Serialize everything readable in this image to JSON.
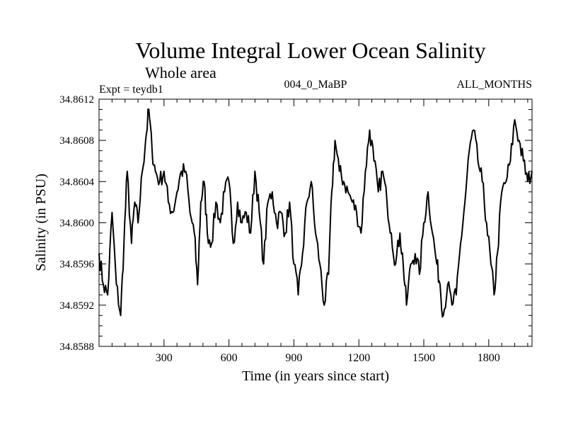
{
  "chart_data": {
    "type": "line",
    "title": "Volume Integral Lower Ocean Salinity",
    "subtitle": "Whole area",
    "annotations": {
      "left": "Expt = teydb1",
      "center": "004_0_MaBP",
      "right": "ALL_MONTHS"
    },
    "xlabel": "Time (in years since start)",
    "ylabel": "Salinity (in PSU)",
    "xlim": [
      0,
      2000
    ],
    "ylim": [
      34.8588,
      34.8612
    ],
    "x_ticks": [
      300,
      600,
      900,
      1200,
      1500,
      1800
    ],
    "y_ticks": [
      "34.8588",
      "34.8592",
      "34.8596",
      "34.8600",
      "34.8604",
      "34.8608",
      "34.8612"
    ],
    "grid": false,
    "series": [
      {
        "name": "Salinity",
        "color": "#000000",
        "x": [
          0,
          20,
          40,
          60,
          80,
          100,
          115,
          130,
          150,
          165,
          180,
          200,
          215,
          230,
          245,
          260,
          280,
          300,
          320,
          340,
          360,
          380,
          400,
          420,
          440,
          455,
          470,
          485,
          500,
          520,
          540,
          560,
          580,
          600,
          620,
          640,
          660,
          680,
          700,
          720,
          740,
          760,
          780,
          800,
          820,
          840,
          860,
          880,
          900,
          920,
          940,
          960,
          980,
          1000,
          1020,
          1040,
          1060,
          1075,
          1090,
          1110,
          1130,
          1150,
          1170,
          1190,
          1210,
          1230,
          1250,
          1270,
          1290,
          1310,
          1330,
          1350,
          1370,
          1390,
          1405,
          1420,
          1440,
          1460,
          1480,
          1500,
          1520,
          1540,
          1560,
          1575,
          1590,
          1610,
          1630,
          1650,
          1670,
          1690,
          1710,
          1730,
          1750,
          1770,
          1790,
          1810,
          1825,
          1840,
          1860,
          1880,
          1900,
          1920,
          1940,
          1960,
          1980,
          2000
        ],
        "values": [
          34.8597,
          34.8594,
          34.8593,
          34.8601,
          34.8594,
          34.8591,
          34.8598,
          34.8605,
          34.8598,
          34.8602,
          34.86,
          34.8605,
          34.8608,
          34.8611,
          34.8607,
          34.8605,
          34.8604,
          34.8605,
          34.8602,
          34.8601,
          34.8603,
          34.8605,
          34.8605,
          34.8601,
          34.8599,
          34.8594,
          34.8602,
          34.8604,
          34.8599,
          34.8598,
          34.8602,
          34.86,
          34.8603,
          34.8604,
          34.8598,
          34.8602,
          34.86,
          34.8601,
          34.8599,
          34.8605,
          34.8601,
          34.8596,
          34.8602,
          34.8603,
          34.86,
          34.8601,
          34.8599,
          34.8602,
          34.8596,
          34.8593,
          34.8597,
          34.8602,
          34.8604,
          34.8599,
          34.8596,
          34.8592,
          34.8595,
          34.8603,
          34.8608,
          34.8605,
          34.8604,
          34.8603,
          34.8602,
          34.8601,
          34.8599,
          34.8605,
          34.8609,
          34.8606,
          34.8603,
          34.8605,
          34.8602,
          34.8599,
          34.8596,
          34.8599,
          34.8596,
          34.8592,
          34.8596,
          34.8597,
          34.8595,
          34.86,
          34.8603,
          34.8599,
          34.8596,
          34.8594,
          34.8591,
          34.8594,
          34.8592,
          34.8593,
          34.8598,
          34.8602,
          34.8607,
          34.8609,
          34.8606,
          34.8604,
          34.86,
          34.8596,
          34.8593,
          34.8597,
          34.8603,
          34.8604,
          34.8606,
          34.861,
          34.8608,
          34.8606,
          34.8604,
          34.8605
        ]
      }
    ]
  }
}
